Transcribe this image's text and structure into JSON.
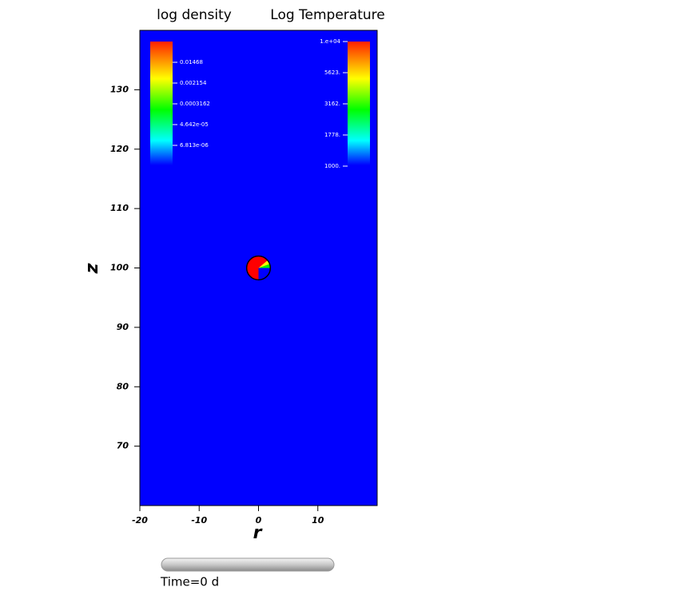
{
  "chart_data": {
    "type": "field",
    "titles": [
      "log density",
      "Log Temperature"
    ],
    "xlabel": "r",
    "ylabel": "z",
    "xlim": [
      -20,
      20
    ],
    "ylim": [
      60,
      140
    ],
    "xticks": [
      -20,
      -10,
      0,
      10
    ],
    "yticks": [
      70,
      80,
      90,
      100,
      110,
      120,
      130
    ],
    "background_color": "#0000ff",
    "object": {
      "center": [
        0,
        100
      ],
      "radius": 2
    },
    "colorbars": [
      {
        "labels": [
          "0.01468",
          "0.002154",
          "0.0003162",
          "4.642e-05",
          "6.813e-06"
        ]
      },
      {
        "labels": [
          "1.e+04",
          "5623.",
          "3162.",
          "1778.",
          "1000."
        ]
      }
    ],
    "time_label": "Time=0 d"
  }
}
